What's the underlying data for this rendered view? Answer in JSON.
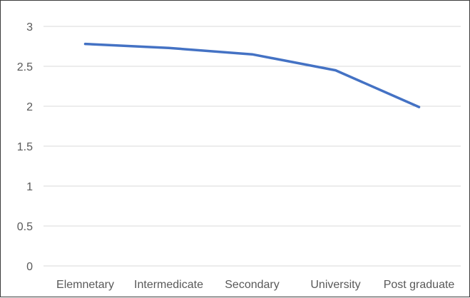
{
  "chart_data": {
    "type": "line",
    "title": "",
    "xlabel": "",
    "ylabel": "",
    "categories": [
      "Elemnetary",
      "Intermedicate",
      "Secondary",
      "University",
      "Post graduate"
    ],
    "series": [
      {
        "values": [
          2.78,
          2.73,
          2.65,
          2.45,
          1.99
        ]
      }
    ],
    "ylim": [
      0,
      3
    ],
    "yticks": [
      "0",
      "0.5",
      "1",
      "1.5",
      "2",
      "2.5",
      "3"
    ],
    "grid": true,
    "legend": "none",
    "line_color": "#4472c4",
    "grid_color": "#d9d9d9"
  }
}
